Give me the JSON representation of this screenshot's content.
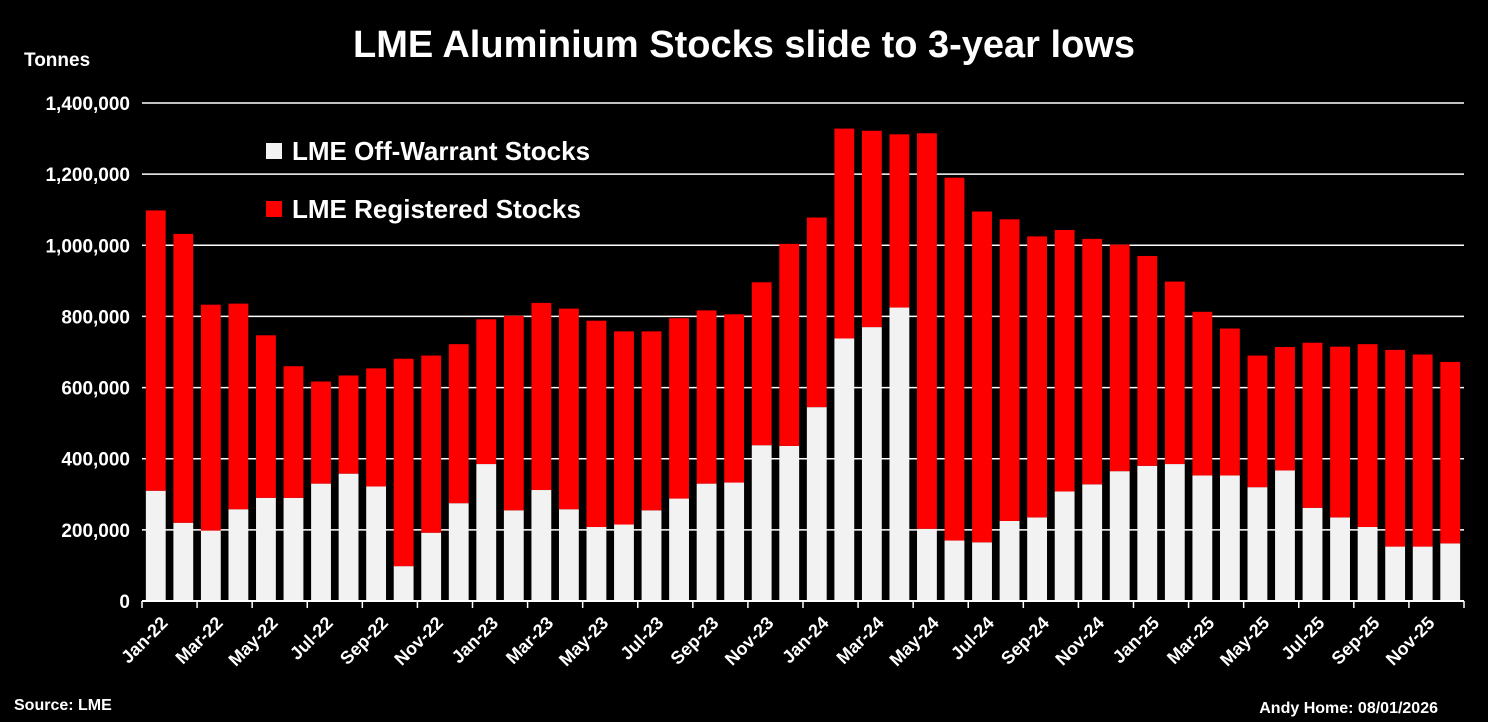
{
  "chart_data": {
    "type": "bar",
    "stacked": true,
    "title": "LME Aluminium Stocks slide to 3-year lows",
    "ylabel": "Tonnes",
    "ylim": [
      0,
      1400000
    ],
    "yticks": [
      0,
      200000,
      400000,
      600000,
      800000,
      1000000,
      1200000,
      1400000
    ],
    "ytick_labels": [
      "0",
      "200,000",
      "400,000",
      "600,000",
      "800,000",
      "1,000,000",
      "1,200,000",
      "1,400,000"
    ],
    "grid": true,
    "legend_position": "top-left",
    "categories": [
      "Jan-22",
      "Feb-22",
      "Mar-22",
      "Apr-22",
      "May-22",
      "Jun-22",
      "Jul-22",
      "Aug-22",
      "Sep-22",
      "Oct-22",
      "Nov-22",
      "Dec-22",
      "Jan-23",
      "Feb-23",
      "Mar-23",
      "Apr-23",
      "May-23",
      "Jun-23",
      "Jul-23",
      "Aug-23",
      "Sep-23",
      "Oct-23",
      "Nov-23",
      "Dec-23",
      "Jan-24",
      "Feb-24",
      "Mar-24",
      "Apr-24",
      "May-24",
      "Jun-24",
      "Jul-24",
      "Aug-24",
      "Sep-24",
      "Oct-24",
      "Nov-24",
      "Dec-24",
      "Jan-25",
      "Feb-25",
      "Mar-25",
      "Apr-25",
      "May-25",
      "Jun-25",
      "Jul-25",
      "Aug-25",
      "Sep-25",
      "Oct-25",
      "Nov-25",
      "Dec-25"
    ],
    "xtick_labels": [
      "Jan-22",
      "Mar-22",
      "May-22",
      "Jul-22",
      "Sep-22",
      "Nov-22",
      "Jan-23",
      "Mar-23",
      "May-23",
      "Jul-23",
      "Sep-23",
      "Nov-23",
      "Jan-24",
      "Mar-24",
      "May-24",
      "Jul-24",
      "Sep-24",
      "Nov-24",
      "Jan-25",
      "Mar-25",
      "May-25",
      "Jul-25",
      "Sep-25",
      "Nov-25"
    ],
    "series": [
      {
        "name": "LME Off-Warrant Stocks",
        "color": "#f2f2f2",
        "values": [
          310000,
          220000,
          198000,
          258000,
          290000,
          290000,
          330000,
          358000,
          322000,
          98000,
          192000,
          275000,
          385000,
          255000,
          312000,
          258000,
          208000,
          215000,
          255000,
          288000,
          330000,
          333000,
          438000,
          436000,
          545000,
          738000,
          770000,
          825000,
          203000,
          170000,
          165000,
          225000,
          235000,
          308000,
          328000,
          365000,
          380000,
          385000,
          353000,
          353000,
          320000,
          367000,
          262000,
          235000,
          208000,
          153000,
          153000,
          162000
        ]
      },
      {
        "name": "LME Registered Stocks",
        "color": "#ff0000",
        "values": [
          788000,
          812000,
          635000,
          578000,
          457000,
          370000,
          287000,
          276000,
          332000,
          583000,
          498000,
          447000,
          407000,
          547000,
          526000,
          564000,
          580000,
          543000,
          503000,
          507000,
          487000,
          473000,
          458000,
          568000,
          533000,
          590000,
          552000,
          487000,
          1112000,
          1020000,
          930000,
          848000,
          790000,
          735000,
          690000,
          637000,
          590000,
          513000,
          460000,
          413000,
          370000,
          347000,
          464000,
          480000,
          514000,
          553000,
          540000,
          510000
        ]
      }
    ]
  },
  "text": {
    "title": "LME Aluminium Stocks slide to 3-year lows",
    "ylabel": "Tonnes",
    "source": "Source: LME",
    "credit": "Andy Home: 08/01/2026"
  }
}
